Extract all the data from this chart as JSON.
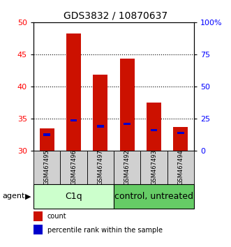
{
  "title": "GDS3832 / 10870637",
  "samples": [
    "GSM467495",
    "GSM467496",
    "GSM467497",
    "GSM467492",
    "GSM467493",
    "GSM467494"
  ],
  "count_values": [
    33.5,
    48.2,
    41.8,
    44.3,
    37.5,
    33.7
  ],
  "percentile_values": [
    32.5,
    34.7,
    33.8,
    34.2,
    33.2,
    32.8
  ],
  "ymin": 30.0,
  "ymax": 50.0,
  "yticks_left": [
    30,
    35,
    40,
    45,
    50
  ],
  "yticks_right_labels": [
    "0",
    "25",
    "50",
    "75",
    "100%"
  ],
  "groups": [
    {
      "label": "C1q",
      "indices": [
        0,
        1,
        2
      ],
      "color": "#ccffcc"
    },
    {
      "label": "control, untreated",
      "indices": [
        3,
        4,
        5
      ],
      "color": "#66cc66"
    }
  ],
  "bar_color": "#cc1100",
  "percentile_color": "#0000cc",
  "bar_width": 0.55,
  "title_fontsize": 10,
  "tick_fontsize": 8,
  "sample_fontsize": 6,
  "group_fontsize": 9,
  "legend_fontsize": 7
}
